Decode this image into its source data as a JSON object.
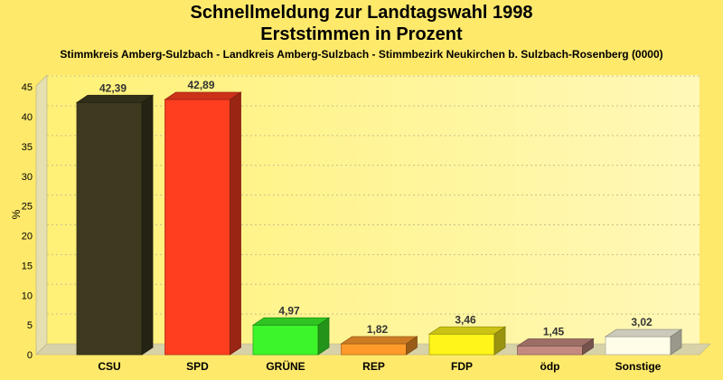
{
  "chart_data": {
    "type": "bar",
    "title": "Schnellmeldung zur Landtagswahl 1998",
    "subtitle": "Erststimmen in Prozent",
    "description": "Stimmkreis Amberg-Sulzbach - Landkreis Amberg-Sulzbach - Stimmbezirk Neukirchen b. Sulzbach-Rosenberg (0000)",
    "ylabel": "%",
    "ylim": [
      0,
      47
    ],
    "yticks": [
      0,
      5,
      10,
      15,
      20,
      25,
      30,
      35,
      40,
      45
    ],
    "categories": [
      "CSU",
      "SPD",
      "GRÜNE",
      "REP",
      "FDP",
      "ödp",
      "Sonstige"
    ],
    "values": [
      42.39,
      42.89,
      4.97,
      1.82,
      3.46,
      1.45,
      3.02
    ],
    "value_labels": [
      "42,39",
      "42,89",
      "4,97",
      "1,82",
      "3,46",
      "1,45",
      "3,02"
    ],
    "colors": [
      "#3d3a20",
      "#ff3d1f",
      "#3cf52a",
      "#ff9a2a",
      "#fff51a",
      "#c48a80",
      "#fffde8"
    ]
  }
}
